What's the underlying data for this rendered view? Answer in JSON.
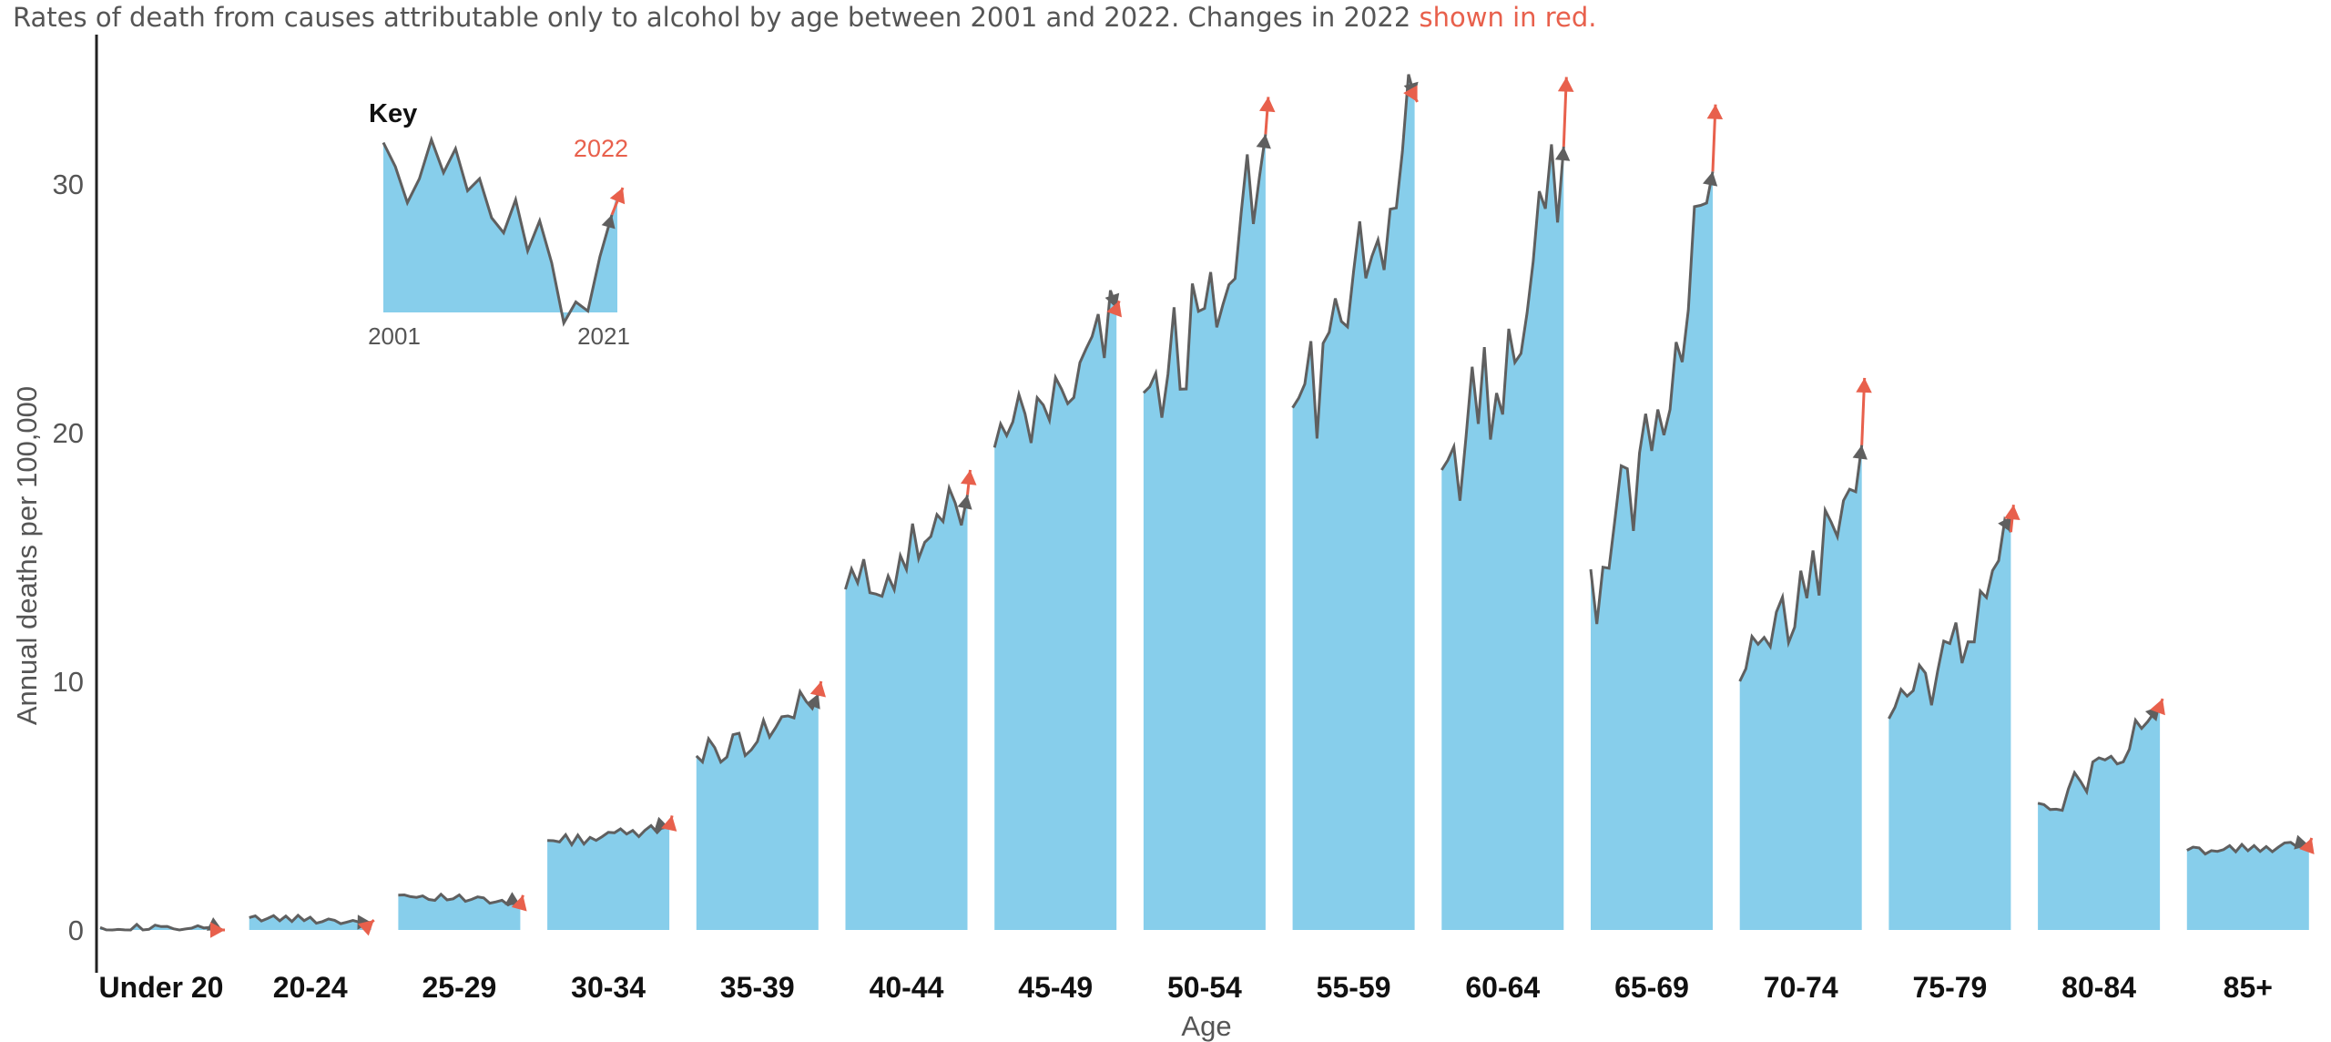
{
  "subtitle": {
    "text": "Rates of death from causes attributable only to alcohol by age between 2001 and 2022. Changes in 2022",
    "highlight": "shown in red."
  },
  "colors": {
    "area_fill": "#87ceeb",
    "series_line": "#5f5f5f",
    "change_2022": "#e8604c",
    "axis_text": "#555555",
    "category_text": "#111111"
  },
  "key": {
    "title": "Key",
    "highlight_label": "2022",
    "start_label": "2001",
    "end_label": "2021"
  },
  "chart_data": {
    "type": "area",
    "title": "Rates of death from causes attributable only to alcohol by age between 2001 and 2022. Changes in 2022 shown in red.",
    "xlabel": "Age",
    "ylabel": "Annual deaths per 100,000",
    "ylim": [
      0,
      35
    ],
    "yticks": [
      0,
      10,
      20,
      30
    ],
    "categories": [
      "Under 20",
      "20-24",
      "25-29",
      "30-34",
      "35-39",
      "40-44",
      "45-49",
      "50-54",
      "55-59",
      "60-64",
      "65-69",
      "70-74",
      "75-79",
      "80-84",
      "85+"
    ],
    "period": "2001 to 2022, small multiples per age band; last step (2021 to 2022) marked as change in 2022",
    "series": [
      {
        "group": "Under 20",
        "start": 0.1,
        "end_2021": 0.0,
        "value_2022": 0.0
      },
      {
        "group": "20-24",
        "start": 0.5,
        "end_2021": 0.3,
        "value_2022": 0.4
      },
      {
        "group": "25-29",
        "start": 1.4,
        "end_2021": 1.0,
        "value_2022": 1.4
      },
      {
        "group": "30-34",
        "start": 3.6,
        "end_2021": 4.1,
        "value_2022": 4.6
      },
      {
        "group": "35-39",
        "start": 7.0,
        "end_2021": 9.5,
        "value_2022": 10.0
      },
      {
        "group": "40-44",
        "start": 13.7,
        "end_2021": 17.5,
        "value_2022": 18.5
      },
      {
        "group": "45-49",
        "start": 19.4,
        "end_2021": 25.0,
        "value_2022": 25.3
      },
      {
        "group": "50-54",
        "start": 21.6,
        "end_2021": 32.0,
        "value_2022": 33.5
      },
      {
        "group": "55-59",
        "start": 21.0,
        "end_2021": 33.5,
        "value_2022": 33.3
      },
      {
        "group": "60-64",
        "start": 18.5,
        "end_2021": 31.5,
        "value_2022": 34.3
      },
      {
        "group": "65-69",
        "start": 14.5,
        "end_2021": 30.5,
        "value_2022": 33.2
      },
      {
        "group": "70-74",
        "start": 10.0,
        "end_2021": 19.5,
        "value_2022": 22.2
      },
      {
        "group": "75-79",
        "start": 8.5,
        "end_2021": 16.0,
        "value_2022": 17.1
      },
      {
        "group": "80-84",
        "start": 5.1,
        "end_2021": 9.0,
        "value_2022": 9.3
      },
      {
        "group": "85+",
        "start": 3.2,
        "end_2021": 3.4,
        "value_2022": 3.7
      }
    ],
    "grid": false,
    "legend": "inset key, top-left"
  }
}
